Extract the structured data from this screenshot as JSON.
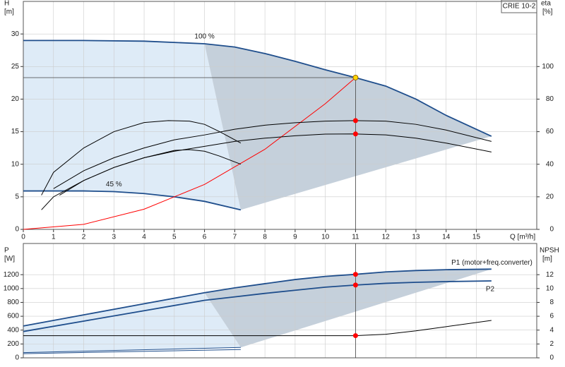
{
  "chart_data": [
    {
      "type": "line",
      "title": "CRIE 10-2",
      "y_label": "H",
      "y_unit": "[m]",
      "y2_label": "eta",
      "y2_unit": "[%]",
      "x_label": "Q [m³/h]",
      "xlim": [
        0,
        17
      ],
      "xticks": [
        0,
        1,
        2,
        3,
        4,
        5,
        6,
        7,
        8,
        9,
        10,
        11,
        12,
        13,
        14,
        15
      ],
      "ylim": [
        0,
        35
      ],
      "yticks": [
        0,
        5,
        10,
        15,
        20,
        25,
        30
      ],
      "y2lim": [
        0,
        140
      ],
      "y2ticks": [
        0,
        20,
        40,
        60,
        80,
        100
      ],
      "grid": true,
      "series": [
        {
          "name": "100 %",
          "color": "#1f4e8c",
          "x": [
            0,
            2,
            4,
            6,
            7,
            8,
            9,
            10,
            11,
            12,
            13,
            14,
            15.5
          ],
          "values": [
            29,
            29,
            28.9,
            28.5,
            28,
            27,
            25.8,
            24.5,
            23.3,
            22,
            20,
            17.5,
            14.3
          ]
        },
        {
          "name": "45 %",
          "color": "#1f4e8c",
          "x": [
            0,
            2,
            3,
            4,
            5,
            6,
            7.2
          ],
          "values": [
            5.9,
            5.9,
            5.8,
            5.5,
            5.0,
            4.3,
            3.0
          ]
        },
        {
          "color": "#ff0000",
          "x": [
            0,
            2,
            4,
            6,
            8,
            10,
            11
          ],
          "values": [
            0,
            0.77,
            3.1,
            6.9,
            12.3,
            19.3,
            23.3
          ]
        },
        {
          "color": "#000000",
          "axis": "y2",
          "x": [
            1,
            2,
            3,
            4,
            5,
            6,
            7,
            8,
            9,
            10,
            11,
            12,
            13,
            14,
            15.5
          ],
          "values": [
            25,
            36,
            44,
            50,
            55,
            58,
            61.5,
            64,
            65.5,
            66.5,
            66.8,
            66.5,
            64.5,
            61,
            54
          ]
        },
        {
          "color": "#000000",
          "axis": "y2",
          "x": [
            1.2,
            2,
            3,
            4,
            5,
            6,
            7,
            8,
            9,
            10,
            11,
            12,
            13,
            14,
            15.5
          ],
          "values": [
            21,
            30,
            38,
            44,
            48,
            51,
            54,
            56,
            57.5,
            58.5,
            58.6,
            58,
            56,
            53,
            47.5
          ]
        },
        {
          "color": "#000000",
          "axis": "y2",
          "x": [
            0.6,
            1,
            2,
            3,
            4,
            4.8,
            5.5,
            6,
            6.5,
            7.2
          ],
          "values": [
            21,
            35,
            50,
            60,
            65.6,
            66.8,
            66.5,
            64.5,
            60,
            53
          ]
        },
        {
          "color": "#000000",
          "axis": "y2",
          "x": [
            0.6,
            1,
            2,
            3,
            4,
            5,
            5.5,
            6,
            6.5,
            7.2
          ],
          "values": [
            12,
            20,
            30,
            38,
            44,
            48.5,
            49,
            48,
            45,
            40
          ]
        }
      ],
      "markers": [
        {
          "x": 11,
          "y": 23.3,
          "color": "#ffd700"
        },
        {
          "x": 11,
          "y": 66.8,
          "axis": "y2",
          "color": "#ff0000"
        },
        {
          "x": 11,
          "y": 58.6,
          "axis": "y2",
          "color": "#ff0000"
        }
      ]
    },
    {
      "type": "line",
      "y_label": "P",
      "y_unit": "[W]",
      "y2_label": "NPSH",
      "y2_unit": "[m]",
      "xlim": [
        0,
        17
      ],
      "ylim": [
        0,
        1650
      ],
      "yticks": [
        0,
        200,
        400,
        600,
        800,
        1000,
        1200
      ],
      "y2lim": [
        0,
        16.5
      ],
      "y2ticks": [
        0,
        2,
        4,
        6,
        8,
        10,
        12
      ],
      "grid": true,
      "series": [
        {
          "name": "P1 (motor+freq.converter)",
          "color": "#1f4e8c",
          "x": [
            0,
            2,
            4,
            6,
            7,
            8,
            9,
            10,
            11,
            12,
            13,
            14,
            15.5
          ],
          "values": [
            460,
            620,
            780,
            940,
            1010,
            1070,
            1130,
            1175,
            1205,
            1240,
            1260,
            1272,
            1280
          ]
        },
        {
          "name": "P2",
          "color": "#1f4e8c",
          "x": [
            0,
            2,
            4,
            6,
            7,
            8,
            9,
            10,
            11,
            12,
            13,
            14,
            15.5
          ],
          "values": [
            380,
            530,
            680,
            830,
            880,
            930,
            975,
            1020,
            1050,
            1075,
            1090,
            1100,
            1110
          ]
        },
        {
          "color": "#000000",
          "axis": "y2",
          "x": [
            0,
            6,
            11,
            12,
            13,
            14,
            15.5
          ],
          "values": [
            3.2,
            3.2,
            3.2,
            3.4,
            3.9,
            4.5,
            5.4
          ]
        },
        {
          "color": "#1f4e8c",
          "x": [
            0,
            7.2
          ],
          "values": [
            75,
            150
          ]
        },
        {
          "color": "#1f4e8c",
          "x": [
            0,
            7.2
          ],
          "values": [
            60,
            120
          ]
        }
      ],
      "markers": [
        {
          "x": 11,
          "y": 1205,
          "color": "#ff0000"
        },
        {
          "x": 11,
          "y": 1050,
          "color": "#ff0000"
        },
        {
          "x": 11,
          "y": 3.2,
          "axis": "y2",
          "color": "#ff0000"
        }
      ]
    }
  ]
}
